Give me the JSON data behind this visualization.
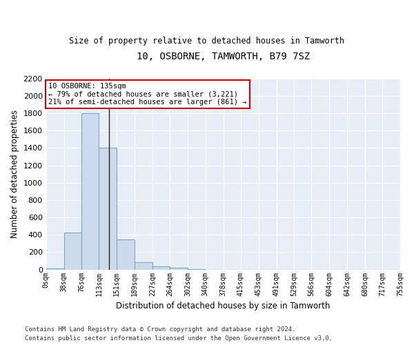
{
  "title": "10, OSBORNE, TAMWORTH, B79 7SZ",
  "subtitle": "Size of property relative to detached houses in Tamworth",
  "xlabel": "Distribution of detached houses by size in Tamworth",
  "ylabel": "Number of detached properties",
  "bin_labels": [
    "0sqm",
    "38sqm",
    "76sqm",
    "113sqm",
    "151sqm",
    "189sqm",
    "227sqm",
    "264sqm",
    "302sqm",
    "340sqm",
    "378sqm",
    "415sqm",
    "453sqm",
    "491sqm",
    "529sqm",
    "566sqm",
    "604sqm",
    "642sqm",
    "680sqm",
    "717sqm",
    "755sqm"
  ],
  "bin_edges": [
    0,
    38,
    76,
    113,
    151,
    189,
    227,
    264,
    302,
    340,
    378,
    415,
    453,
    491,
    529,
    566,
    604,
    642,
    680,
    717,
    755
  ],
  "bar_heights": [
    15,
    425,
    1800,
    1400,
    350,
    85,
    35,
    20,
    5,
    0,
    0,
    0,
    0,
    0,
    0,
    0,
    0,
    0,
    0,
    0
  ],
  "bar_color": "#ccdaeb",
  "bar_edge_color": "#7aaac8",
  "property_value": 135,
  "annotation_text_line1": "10 OSBORNE: 135sqm",
  "annotation_text_line2": "← 79% of detached houses are smaller (3,221)",
  "annotation_text_line3": "21% of semi-detached houses are larger (861) →",
  "annotation_box_edgecolor": "#cc0000",
  "ylim": [
    0,
    2200
  ],
  "yticks": [
    0,
    200,
    400,
    600,
    800,
    1000,
    1200,
    1400,
    1600,
    1800,
    2000,
    2200
  ],
  "background_color": "#e8eef8",
  "grid_color": "#ffffff",
  "footer_line1": "Contains HM Land Registry data © Crown copyright and database right 2024.",
  "footer_line2": "Contains public sector information licensed under the Open Government Licence v3.0."
}
